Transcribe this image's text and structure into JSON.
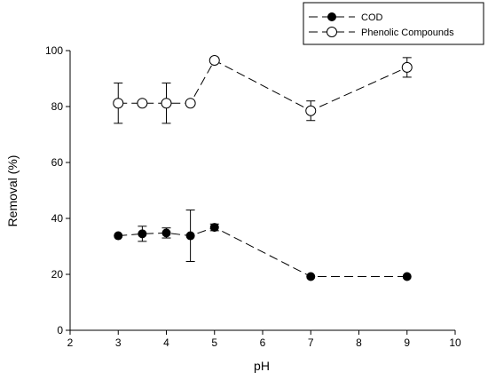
{
  "chart_data": {
    "type": "scatter",
    "xlabel": "pH",
    "ylabel": "Removal (%)",
    "xlim": [
      2,
      10
    ],
    "ylim": [
      0,
      100
    ],
    "xticks": [
      2,
      3,
      4,
      5,
      6,
      7,
      8,
      9,
      10
    ],
    "yticks": [
      0,
      20,
      40,
      60,
      80,
      100
    ],
    "grid": false,
    "legend_position": "top-right",
    "series": [
      {
        "name": "COD",
        "marker": "filled-circle",
        "line": "dashed",
        "points": [
          {
            "x": 3,
            "y": 33.8,
            "err": 0
          },
          {
            "x": 3.5,
            "y": 34.5,
            "err": 2.7
          },
          {
            "x": 4,
            "y": 34.8,
            "err": 1.8
          },
          {
            "x": 4.5,
            "y": 33.8,
            "err": 9.2
          },
          {
            "x": 5,
            "y": 36.8,
            "err": 1.2
          },
          {
            "x": 7,
            "y": 19.2,
            "err": 0
          },
          {
            "x": 9,
            "y": 19.2,
            "err": 0
          }
        ]
      },
      {
        "name": "Phenolic Compounds",
        "marker": "open-circle",
        "line": "dashed",
        "points": [
          {
            "x": 3,
            "y": 81.2,
            "err": 7.2
          },
          {
            "x": 3.5,
            "y": 81.2,
            "err": 0
          },
          {
            "x": 4,
            "y": 81.2,
            "err": 7.2
          },
          {
            "x": 4.5,
            "y": 81.2,
            "err": 0
          },
          {
            "x": 5,
            "y": 96.5,
            "err": 0
          },
          {
            "x": 7,
            "y": 78.5,
            "err": 3.5
          },
          {
            "x": 9,
            "y": 94.0,
            "err": 3.5
          }
        ]
      }
    ]
  }
}
